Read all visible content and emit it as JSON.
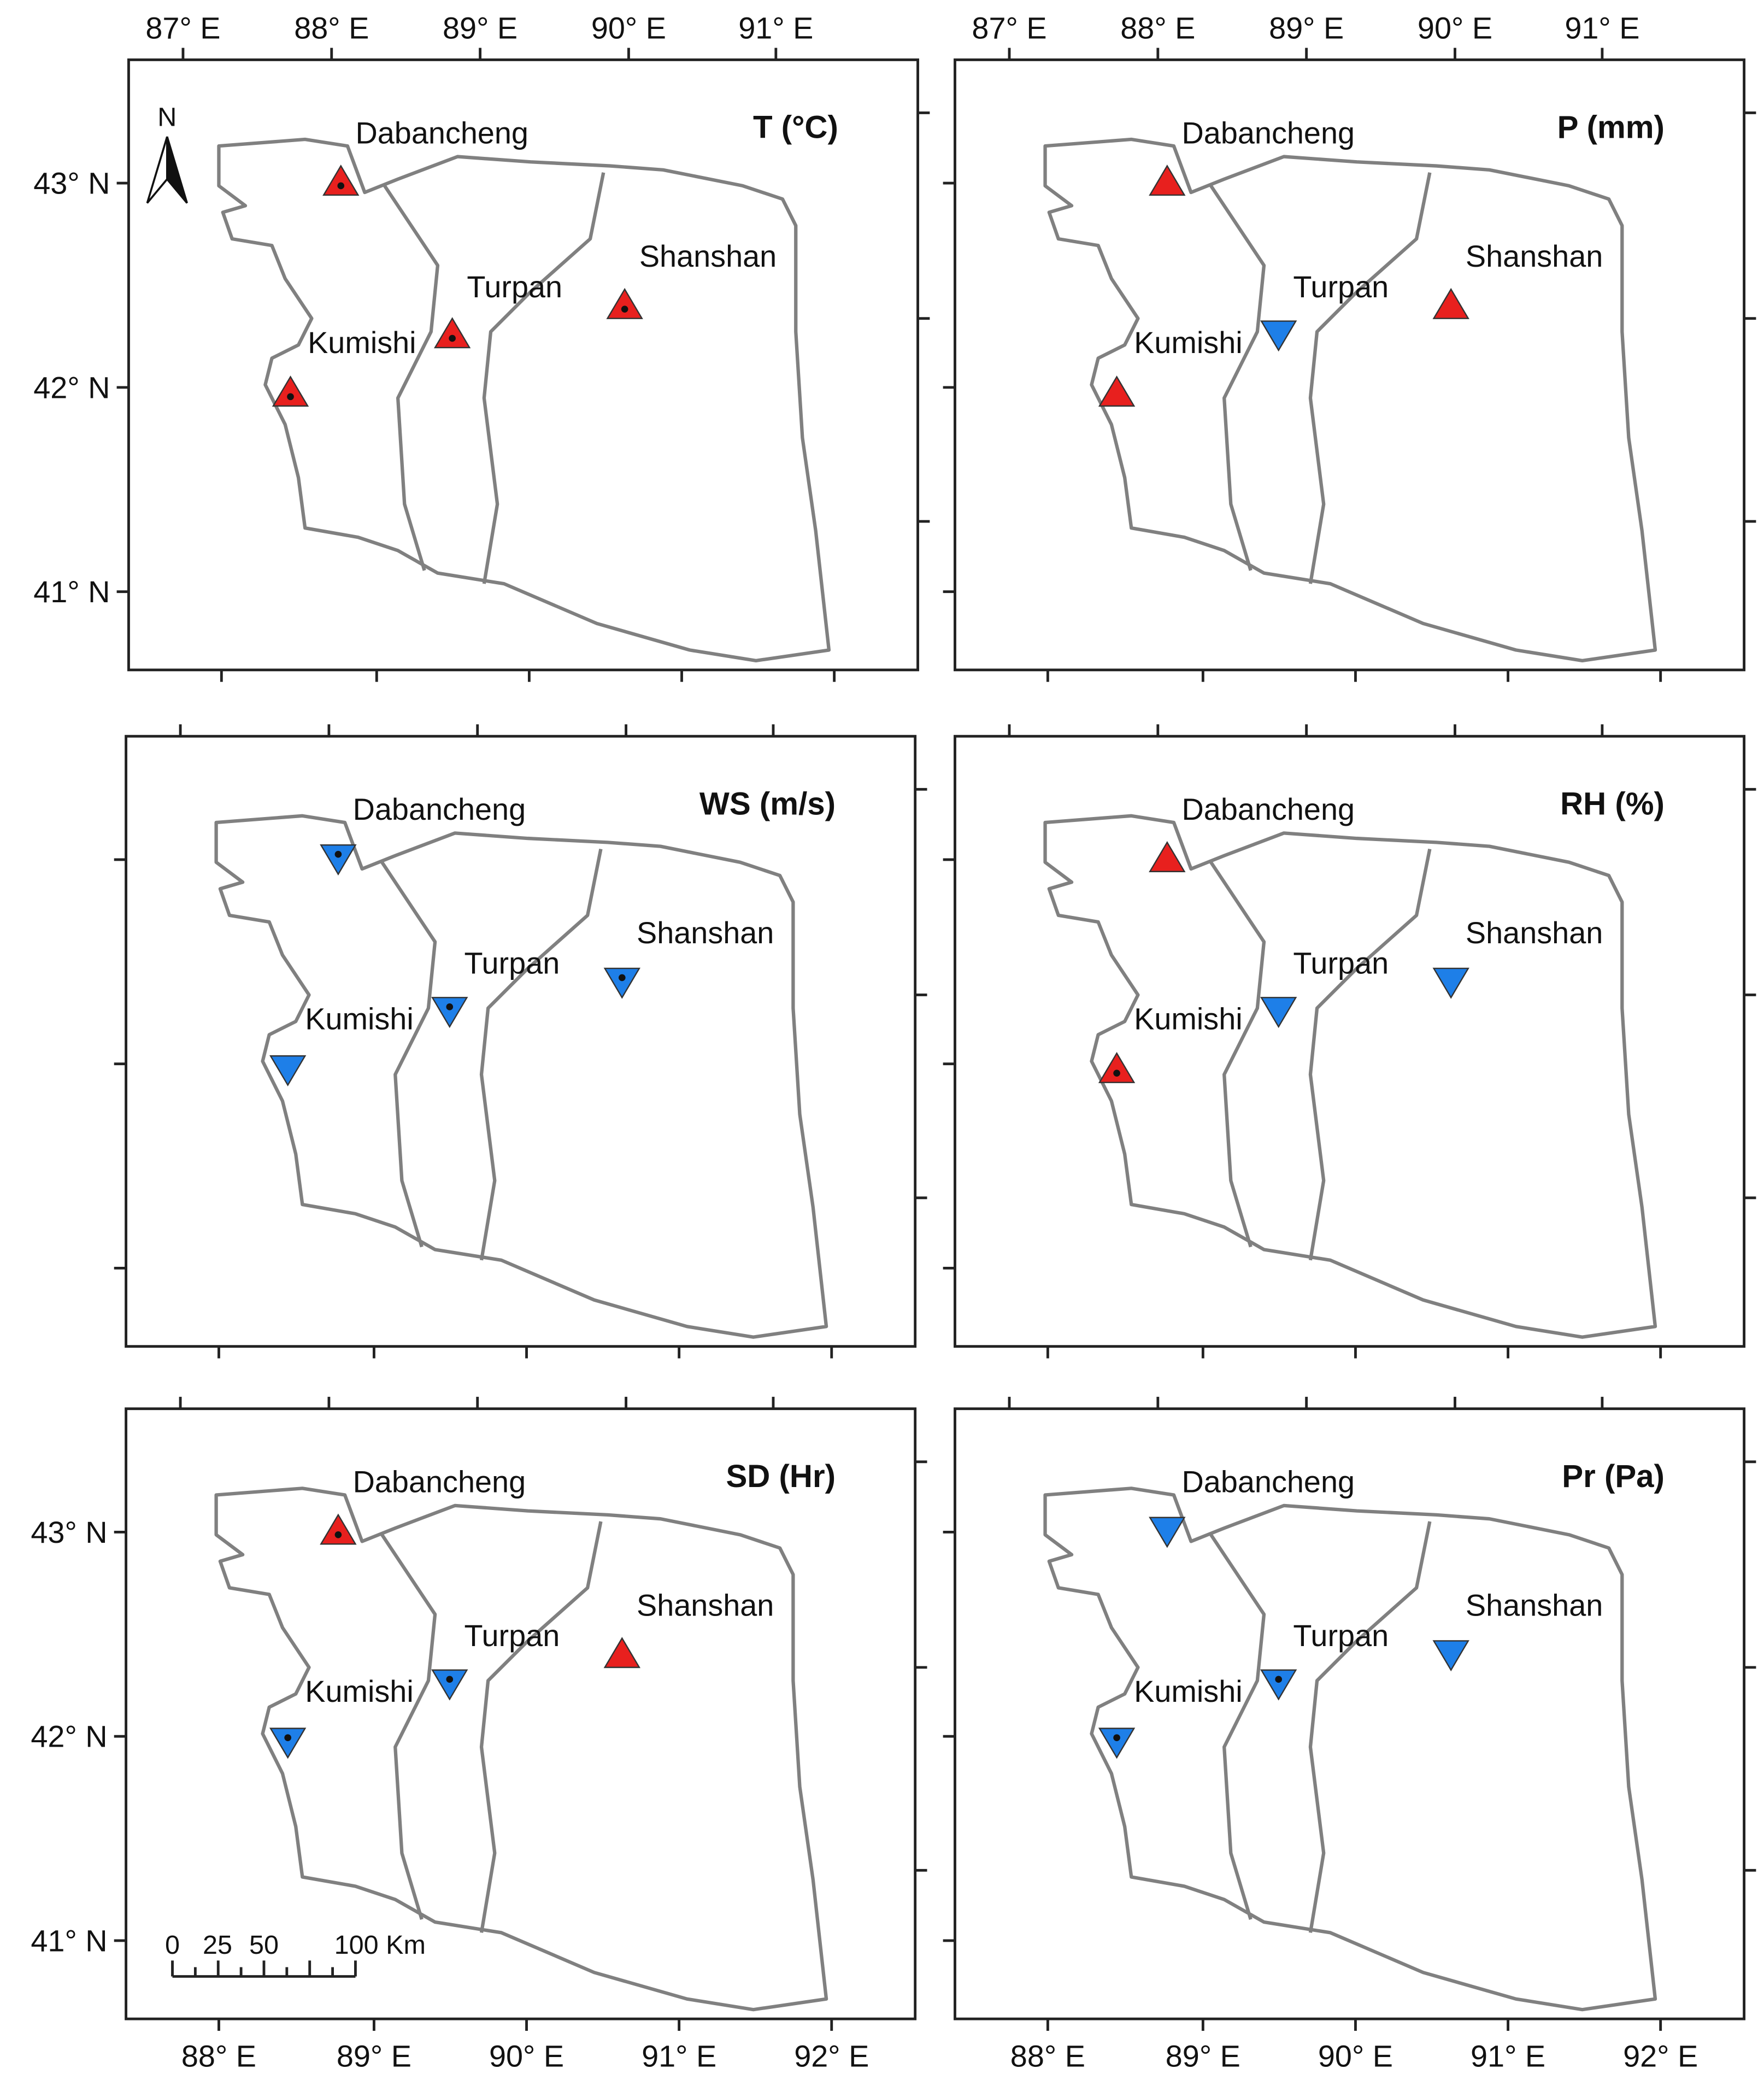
{
  "stations": [
    "Dabancheng",
    "Turpan",
    "Shanshan",
    "Kumishi"
  ],
  "colors": {
    "up": "#e8201e",
    "down": "#1e7fe8"
  },
  "lon_labels_top": [
    "87° E",
    "88° E",
    "89° E",
    "90° E",
    "91° E"
  ],
  "lon_labels_bottom": [
    "88° E",
    "89° E",
    "90° E",
    "91° E",
    "92° E"
  ],
  "lat_labels": [
    "43° N",
    "42° N",
    "41° N"
  ],
  "north": "N",
  "scale_labels": [
    "0",
    "25",
    "50",
    "100 Km"
  ],
  "panels": [
    {
      "title": "T (°C)",
      "trends": [
        "up",
        "up",
        "up",
        "up"
      ],
      "significant": [
        true,
        true,
        true,
        true
      ]
    },
    {
      "title": "P (mm)",
      "trends": [
        "up",
        "down",
        "up",
        "up"
      ],
      "significant": [
        false,
        false,
        false,
        false
      ]
    },
    {
      "title": "WS (m/s)",
      "trends": [
        "down",
        "down",
        "down",
        "down"
      ],
      "significant": [
        true,
        true,
        true,
        false
      ]
    },
    {
      "title": "RH (%)",
      "trends": [
        "up",
        "down",
        "down",
        "up"
      ],
      "significant": [
        false,
        false,
        false,
        true
      ]
    },
    {
      "title": "SD (Hr)",
      "trends": [
        "up",
        "down",
        "up",
        "down"
      ],
      "significant": [
        true,
        true,
        false,
        true
      ]
    },
    {
      "title": "Pr (Pa)",
      "trends": [
        "down",
        "down",
        "down",
        "down"
      ],
      "significant": [
        false,
        true,
        false,
        true
      ]
    }
  ]
}
